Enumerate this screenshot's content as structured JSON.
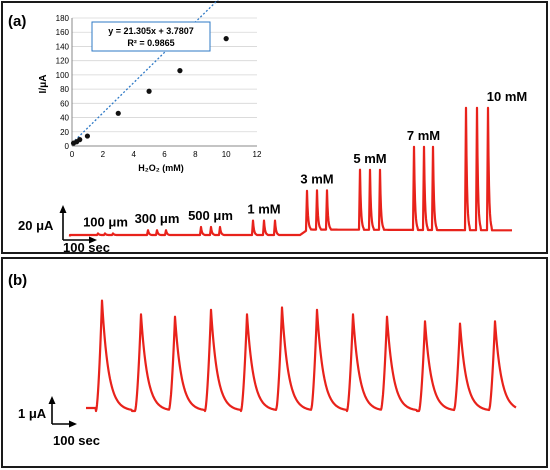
{
  "colors": {
    "trace": "#e8221b",
    "frame": "#1a1a1a",
    "fit_line": "#2e79c6",
    "point": "#111111",
    "grid": "#d6d6d6"
  },
  "panel_a": {
    "label": "(a)",
    "scale_current": "20 μA",
    "scale_time": "100 sec",
    "annotations": [
      "100 μm",
      "300 μm",
      "500 μm",
      "1 mM",
      "3 mM",
      "5 mM",
      "7 mM",
      "10 mM"
    ]
  },
  "panel_b": {
    "label": "(b)",
    "scale_current": "1 μA",
    "scale_time": "100 sec"
  },
  "chart_data": [
    {
      "type": "scatter",
      "title": "",
      "xlabel": "H₂O₂ (mM)",
      "ylabel": "I/μA",
      "xlim": [
        0,
        12
      ],
      "ylim": [
        0,
        180
      ],
      "x_ticks": [
        "0",
        "2",
        "4",
        "6",
        "8",
        "10",
        "12"
      ],
      "y_ticks": [
        "0",
        "20",
        "40",
        "60",
        "80",
        "100",
        "120",
        "140",
        "160",
        "180"
      ],
      "grid": "horizontal",
      "points": [
        {
          "x": 0.1,
          "y": 4
        },
        {
          "x": 0.3,
          "y": 6
        },
        {
          "x": 0.5,
          "y": 9
        },
        {
          "x": 1,
          "y": 14
        },
        {
          "x": 3,
          "y": 46
        },
        {
          "x": 5,
          "y": 77
        },
        {
          "x": 7,
          "y": 106
        },
        {
          "x": 10,
          "y": 151
        }
      ],
      "fit": {
        "slope": 21.305,
        "intercept": 3.7807,
        "equation": "y = 21.305x + 3.7807",
        "r2": "R² = 0.9865"
      }
    },
    {
      "type": "line",
      "title": "",
      "series": [
        {
          "groups": [
            {
              "label": "100 μm",
              "peak_count": 3,
              "height_uA": 2
            },
            {
              "label": "300 μm",
              "peak_count": 3,
              "height_uA": 6
            },
            {
              "label": "500 μm",
              "peak_count": 3,
              "height_uA": 10
            },
            {
              "label": "1 mM",
              "peak_count": 3,
              "height_uA": 18
            },
            {
              "label": "3 mM",
              "peak_count": 3,
              "height_uA": 49
            },
            {
              "label": "5 mM",
              "peak_count": 3,
              "height_uA": 75
            },
            {
              "label": "7 mM",
              "peak_count": 3,
              "height_uA": 104
            },
            {
              "label": "10 mM",
              "peak_count": 3,
              "height_uA": 153
            }
          ]
        }
      ]
    },
    {
      "type": "line",
      "title": "",
      "series": [
        {
          "peak_heights_uA": [
            2.4,
            2.1,
            2.05,
            2.2,
            2.1,
            2.25,
            2.2,
            2.1,
            2.05,
            1.95,
            1.9,
            1.95
          ]
        }
      ]
    }
  ]
}
